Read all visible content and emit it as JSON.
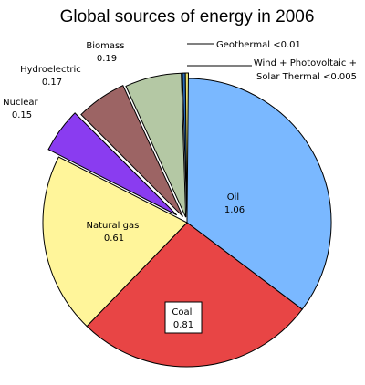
{
  "chart_data": {
    "type": "pie",
    "title": "Global sources of energy in 2006",
    "slices": [
      {
        "label": "Oil",
        "value_text": "1.06",
        "value": 1.06,
        "color": "#7ab8ff"
      },
      {
        "label": "Coal",
        "value_text": "0.81",
        "value": 0.81,
        "color": "#e84545"
      },
      {
        "label": "Natural gas",
        "value_text": "0.61",
        "value": 0.61,
        "color": "#fff59a"
      },
      {
        "label": "Nuclear",
        "value_text": "0.15",
        "value": 0.15,
        "color": "#8a3cf0"
      },
      {
        "label": "Hydroelectric",
        "value_text": "0.17",
        "value": 0.17,
        "color": "#9c6464"
      },
      {
        "label": "Biomass",
        "value_text": "0.19",
        "value": 0.19,
        "color": "#b4c8a4"
      },
      {
        "label": "Wind + Photovoltaic + Solar Thermal",
        "value_text": "<0.005",
        "value": 0.005,
        "color": "#2a6ab5"
      },
      {
        "label": "Geothermal",
        "value_text": "<0.01",
        "value": 0.01,
        "color": "#e8e070"
      }
    ]
  }
}
